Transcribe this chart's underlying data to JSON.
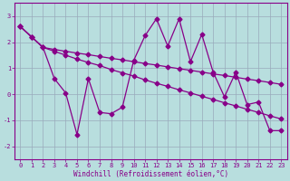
{
  "x": [
    0,
    1,
    2,
    3,
    4,
    5,
    6,
    7,
    8,
    9,
    10,
    11,
    12,
    13,
    14,
    15,
    16,
    17,
    18,
    19,
    20,
    21,
    22,
    23
  ],
  "line_zigzag": [
    2.6,
    2.2,
    1.8,
    0.6,
    0.05,
    -1.55,
    0.6,
    -0.7,
    -0.75,
    -0.5,
    1.3,
    2.25,
    2.9,
    1.85,
    2.9,
    1.25,
    2.3,
    0.85,
    -0.1,
    0.85,
    -0.4,
    -0.3,
    -1.4,
    -1.4
  ],
  "line_upper": [
    2.6,
    2.2,
    1.8,
    1.72,
    1.65,
    1.58,
    1.52,
    1.45,
    1.38,
    1.32,
    1.25,
    1.18,
    1.12,
    1.05,
    0.98,
    0.92,
    0.85,
    0.78,
    0.72,
    0.65,
    0.58,
    0.52,
    0.45,
    0.38
  ],
  "line_lower": [
    2.6,
    2.2,
    1.8,
    1.65,
    1.5,
    1.35,
    1.22,
    1.1,
    0.95,
    0.82,
    0.7,
    0.55,
    0.42,
    0.3,
    0.17,
    0.05,
    -0.08,
    -0.2,
    -0.33,
    -0.45,
    -0.58,
    -0.7,
    -0.83,
    -0.95
  ],
  "line_color": "#880088",
  "bg_color": "#b8dede",
  "grid_color": "#99aabb",
  "xlabel": "Windchill (Refroidissement éolien,°C)",
  "ylim": [
    -2.5,
    3.5
  ],
  "xlim": [
    -0.5,
    23.5
  ],
  "yticks": [
    -2,
    -1,
    0,
    1,
    2,
    3
  ],
  "xticks": [
    0,
    1,
    2,
    3,
    4,
    5,
    6,
    7,
    8,
    9,
    10,
    11,
    12,
    13,
    14,
    15,
    16,
    17,
    18,
    19,
    20,
    21,
    22,
    23
  ],
  "title_fontsize": 6,
  "tick_fontsize": 5,
  "label_fontsize": 5.5,
  "marker_size": 2.5,
  "line_width": 0.9
}
